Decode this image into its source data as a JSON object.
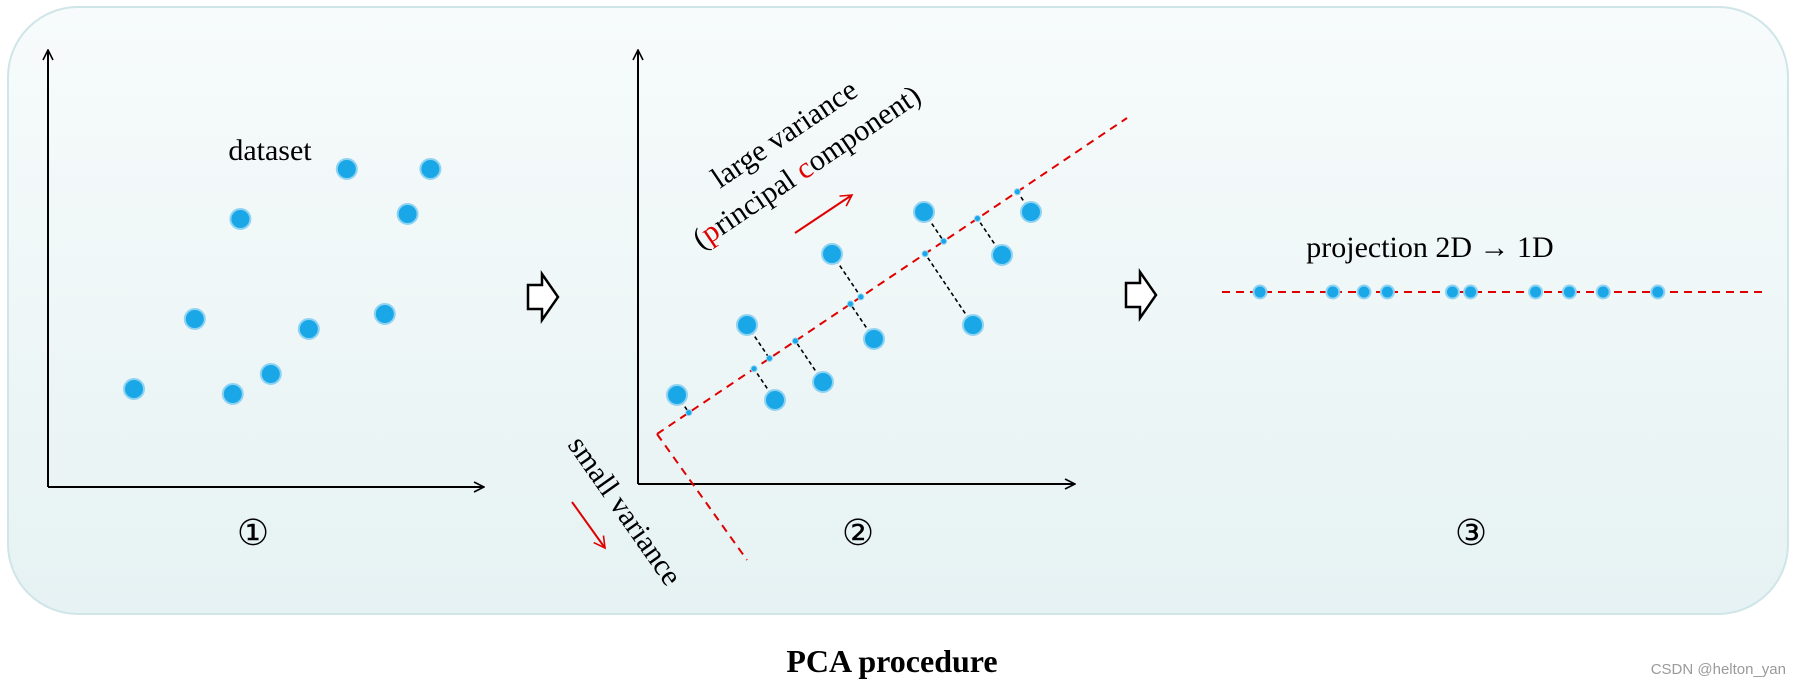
{
  "title": "PCA procedure",
  "watermark": "CSDN @helton_yan",
  "colors": {
    "point": "#1aa7e8",
    "point_stroke": "#8fd3f2",
    "axis": "#000000",
    "highlight": "#e00000",
    "panel_fill_top": "#f7fbfb",
    "panel_fill_bottom": "#e6f2f3",
    "panel_stroke": "#cfe5e8"
  },
  "step_arrow_icon": "hollow-right-arrow",
  "panel1": {
    "label": "dataset",
    "step": "①",
    "points": [
      [
        1.0,
        1.8
      ],
      [
        2.6,
        3.2
      ],
      [
        3.6,
        1.7
      ],
      [
        4.6,
        2.1
      ],
      [
        3.8,
        5.2
      ],
      [
        5.6,
        3.0
      ],
      [
        6.6,
        6.2
      ],
      [
        7.6,
        3.3
      ],
      [
        8.2,
        5.3
      ],
      [
        8.8,
        6.2
      ]
    ]
  },
  "panel2": {
    "step": "②",
    "large_variance_line1": "large variance",
    "large_variance_open": "(",
    "large_variance_p": "p",
    "large_variance_mid": "rincipal ",
    "large_variance_c": "c",
    "large_variance_rest": "omponent)",
    "small_variance": "small variance"
  },
  "panel3": {
    "label": "projection 2D → 1D",
    "step": "③",
    "projected_positions": [
      0.0,
      1.4,
      2.0,
      2.45,
      3.7,
      4.05,
      5.3,
      5.95,
      6.6,
      7.65
    ]
  }
}
